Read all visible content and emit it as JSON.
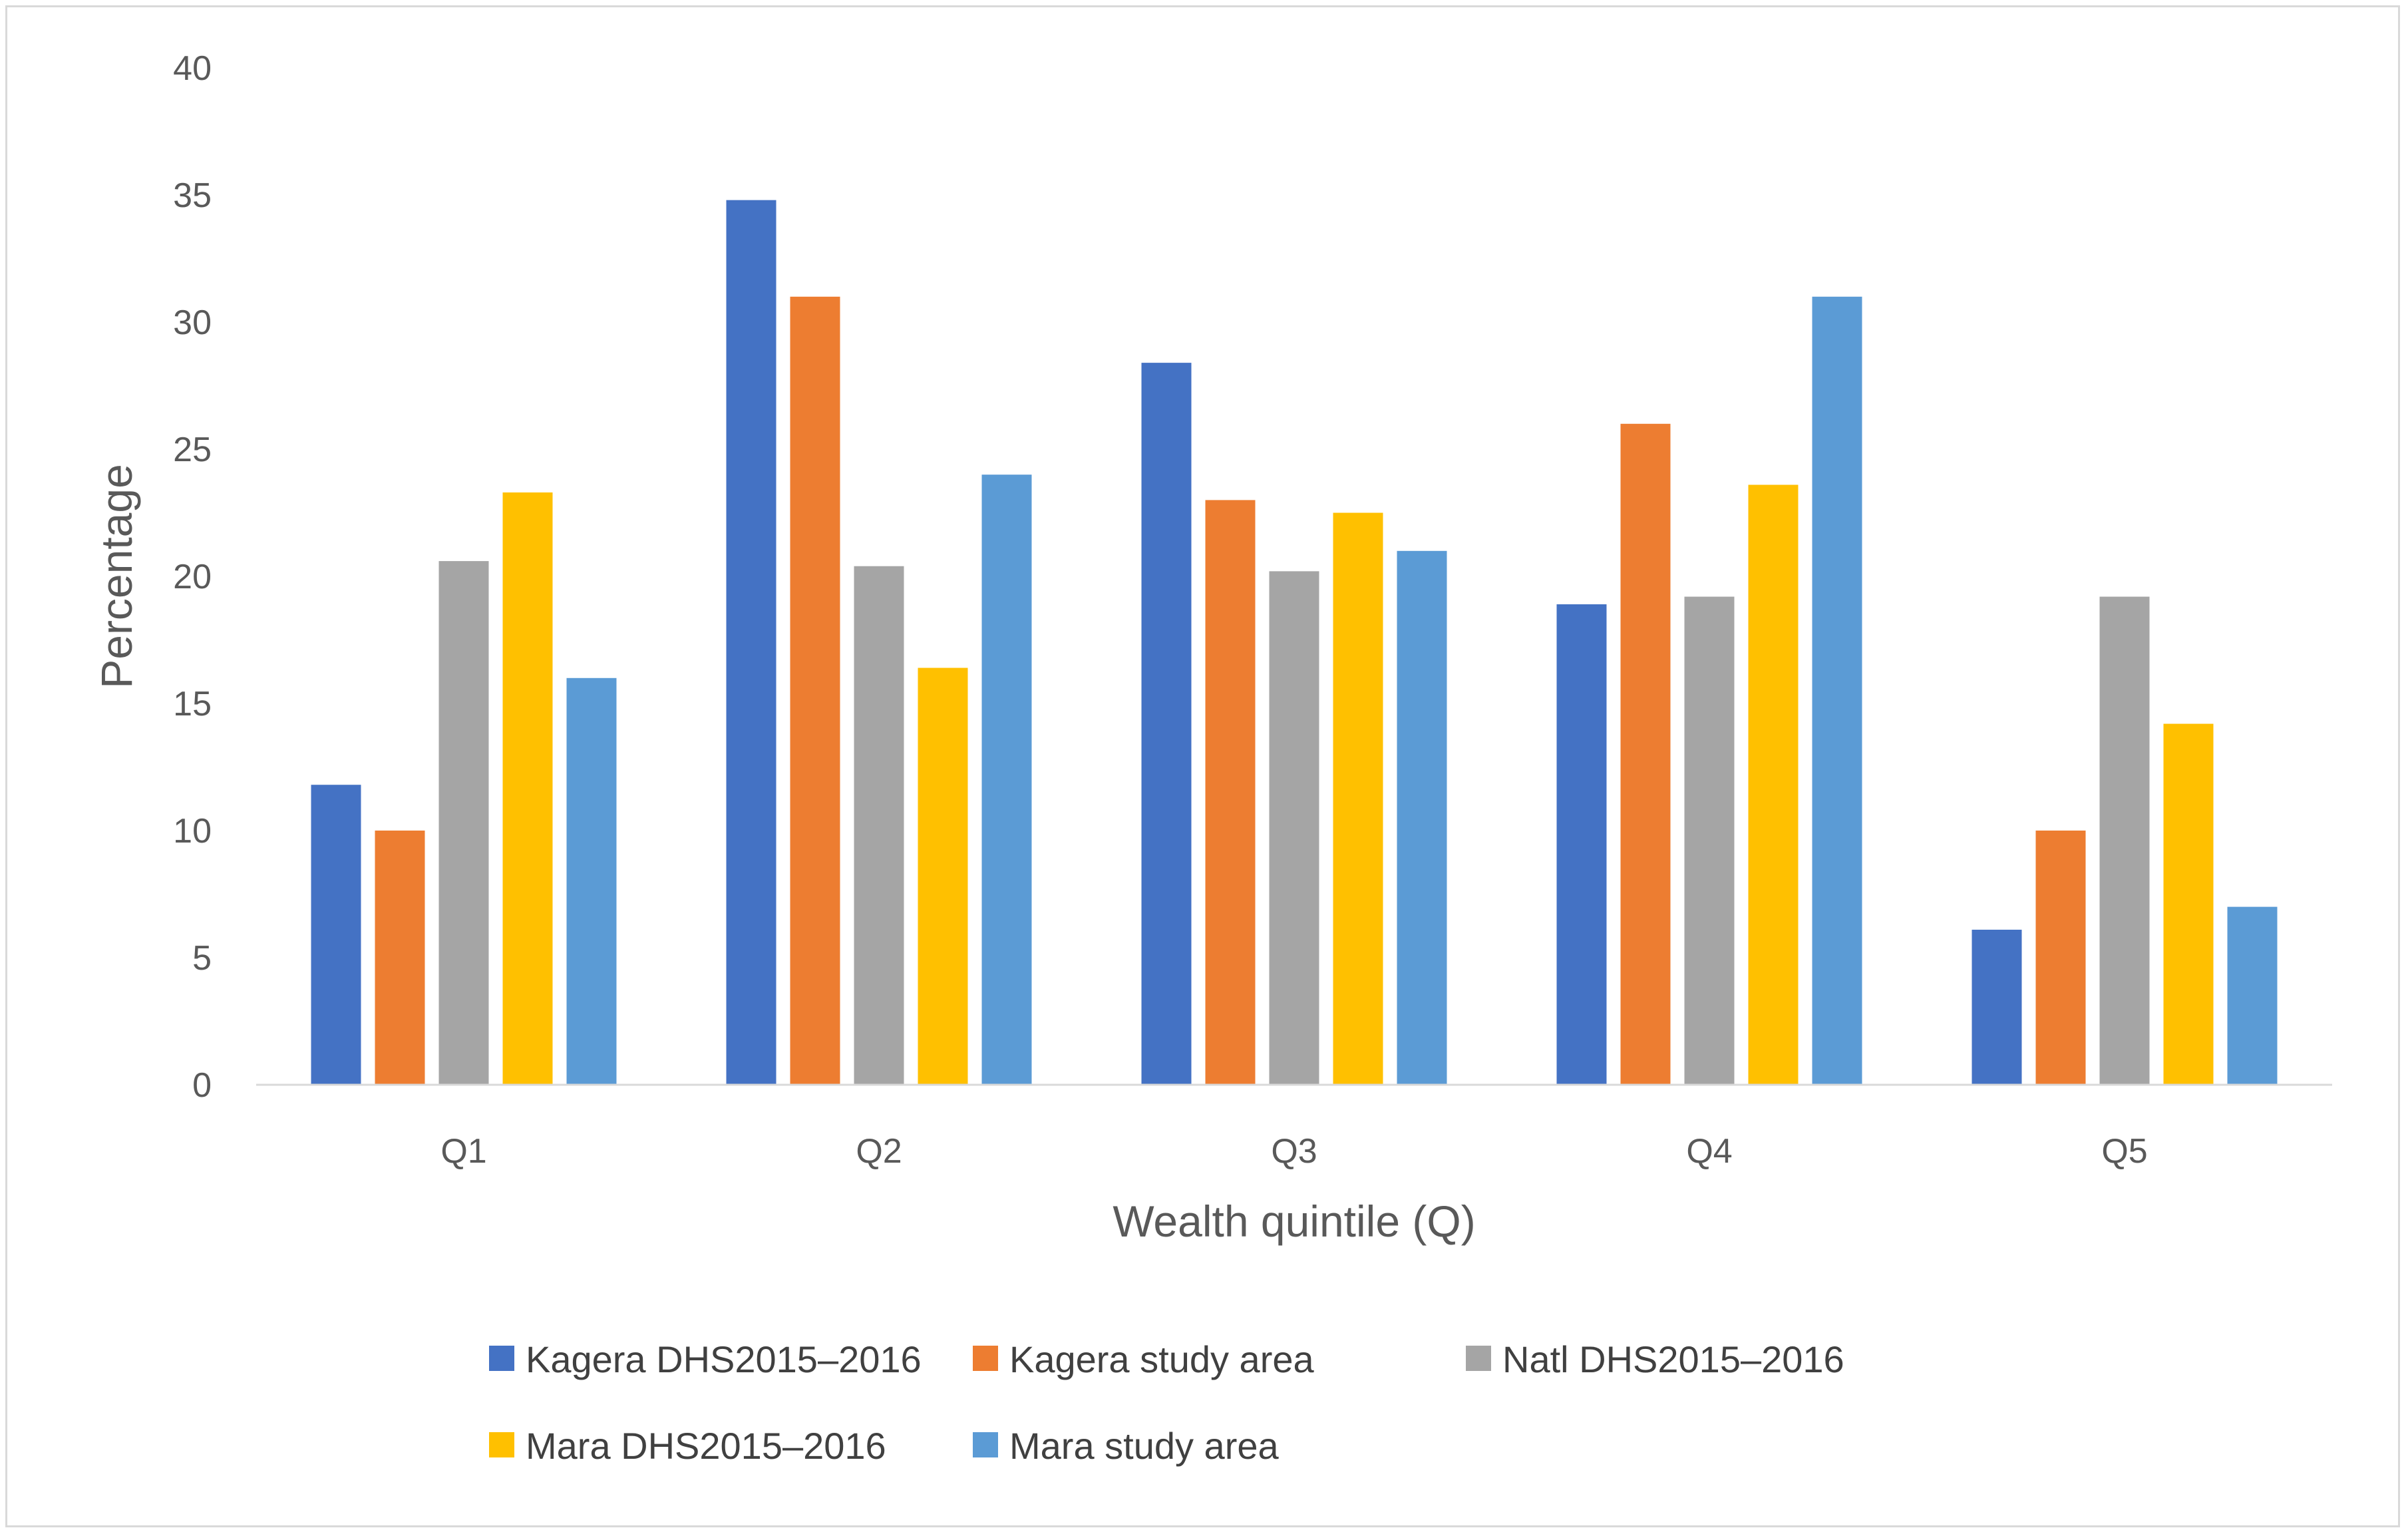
{
  "chart_data": {
    "type": "bar",
    "title": "",
    "xlabel": "Wealth quintile (Q)",
    "ylabel": "Percentage",
    "ylim": [
      0,
      40
    ],
    "yticks": [
      0,
      5,
      10,
      15,
      20,
      25,
      30,
      35,
      40
    ],
    "grid": false,
    "legend_position": "bottom",
    "categories": [
      "Q1",
      "Q2",
      "Q3",
      "Q4",
      "Q5"
    ],
    "series": [
      {
        "name": "Kagera DHS2015–2016",
        "color": "#4472c4",
        "values": [
          11.8,
          34.8,
          28.4,
          18.9,
          6.1
        ]
      },
      {
        "name": "Kagera study area",
        "color": "#ed7d31",
        "values": [
          10,
          31,
          23,
          26,
          10
        ]
      },
      {
        "name": "Natl DHS2015–2016",
        "color": "#a5a5a5",
        "values": [
          20.6,
          20.4,
          20.2,
          19.2,
          19.2
        ]
      },
      {
        "name": "Mara DHS2015–2016",
        "color": "#ffc000",
        "values": [
          23.3,
          16.4,
          22.5,
          23.6,
          14.2
        ]
      },
      {
        "name": "Mara study area",
        "color": "#5b9bd5",
        "values": [
          16,
          24,
          21,
          31,
          7
        ]
      }
    ]
  }
}
